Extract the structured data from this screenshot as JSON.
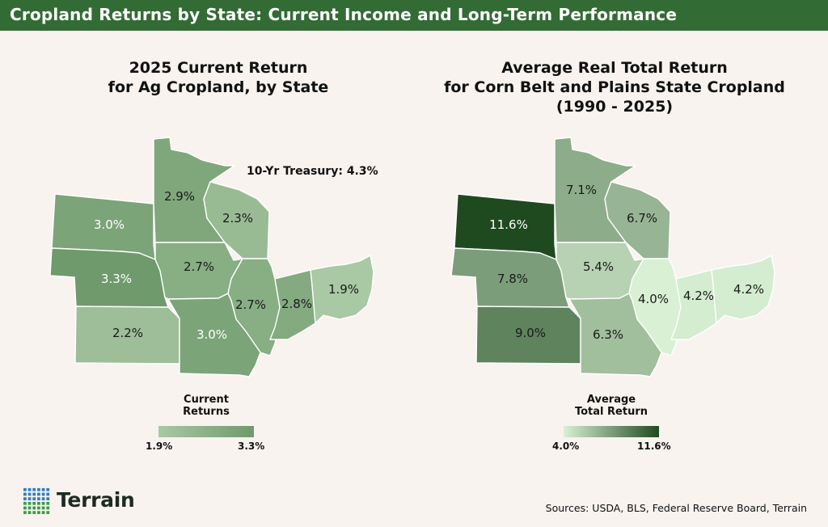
{
  "banner": {
    "title": "Cropland Returns by State: Current Income and Long-Term Performance"
  },
  "left_map": {
    "title_line1": "2025 Current Return",
    "title_line2": "for Ag Cropland, by State",
    "annotation": "10-Yr Treasury: 4.3%",
    "states": {
      "SD": {
        "label": "3.0%",
        "value": 3.0
      },
      "MN": {
        "label": "2.9%",
        "value": 2.9
      },
      "WI": {
        "label": "2.3%",
        "value": 2.3
      },
      "NE": {
        "label": "3.3%",
        "value": 3.3
      },
      "IA": {
        "label": "2.7%",
        "value": 2.7
      },
      "IL": {
        "label": "2.7%",
        "value": 2.7
      },
      "IN": {
        "label": "2.8%",
        "value": 2.8
      },
      "OH": {
        "label": "1.9%",
        "value": 1.9
      },
      "KS": {
        "label": "2.2%",
        "value": 2.2
      },
      "MO": {
        "label": "3.0%",
        "value": 3.0
      }
    },
    "legend": {
      "title_line1": "Current",
      "title_line2": "Returns",
      "min_label": "1.9%",
      "max_label": "3.3%",
      "min": 1.9,
      "max": 3.3,
      "color_min": "#a9c8a4",
      "color_max": "#6f9a6c"
    }
  },
  "right_map": {
    "title_line1": "Average Real Total Return",
    "title_line2": "for Corn Belt and Plains State Cropland",
    "title_line3": "(1990 - 2025)",
    "states": {
      "SD": {
        "label": "11.6%",
        "value": 11.6
      },
      "MN": {
        "label": "7.1%",
        "value": 7.1
      },
      "WI": {
        "label": "6.7%",
        "value": 6.7
      },
      "NE": {
        "label": "7.8%",
        "value": 7.8
      },
      "IA": {
        "label": "5.4%",
        "value": 5.4
      },
      "IL": {
        "label": "4.0%",
        "value": 4.0
      },
      "IN": {
        "label": "4.2%",
        "value": 4.2
      },
      "OH": {
        "label": "4.2%",
        "value": 4.2
      },
      "KS": {
        "label": "9.0%",
        "value": 9.0
      },
      "MO": {
        "label": "6.3%",
        "value": 6.3
      }
    },
    "legend": {
      "title_line1": "Average",
      "title_line2": "Total Return",
      "min_label": "4.0%",
      "max_label": "11.6%",
      "min": 4.0,
      "max": 11.6,
      "color_min": "#d9f0d4",
      "color_max": "#1f4a1f"
    }
  },
  "footer": {
    "logo_text": "Terrain",
    "sources": "Sources: USDA, BLS, Federal Reserve Board, Terrain"
  },
  "colors": {
    "banner": "#336b35",
    "background": "#f8f3ef",
    "logo_blue": "#2f7fc0",
    "logo_green": "#3e9a4a"
  }
}
